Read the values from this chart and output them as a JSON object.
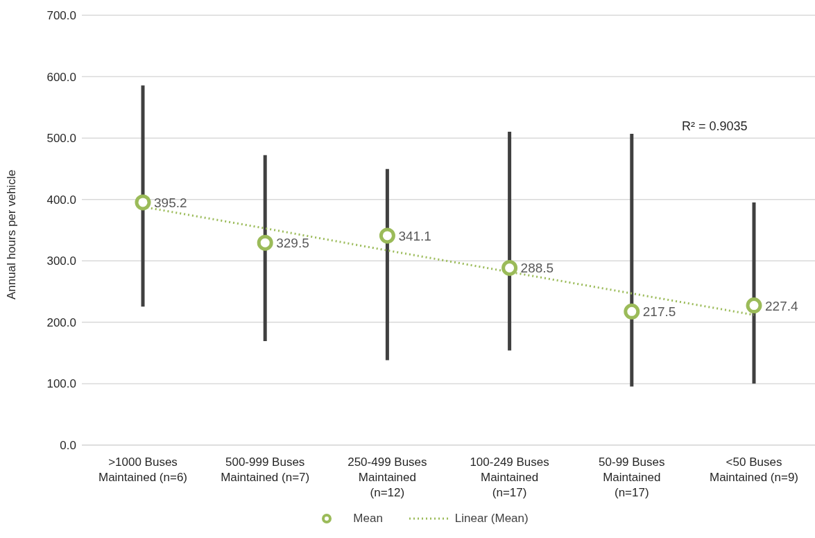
{
  "chart_data": {
    "type": "scatter",
    "ylabel": "Annual hours per vehicle",
    "categories": [
      ">1000 Buses Maintained (n=6)",
      "500-999 Buses Maintained (n=7)",
      "250-499 Buses Maintained (n=12)",
      "100-249 Buses Maintained (n=17)",
      "50-99 Buses Maintained (n=17)",
      "<50 Buses Maintained (n=9)"
    ],
    "series": [
      {
        "name": "Mean",
        "color": "#9bbb59",
        "values": [
          395.2,
          329.5,
          341.1,
          288.5,
          217.5,
          227.4
        ],
        "value_labels": [
          "395.2",
          "329.5",
          "341.1",
          "288.5",
          "217.5",
          "227.4"
        ],
        "errors": [
          [
            225.6,
            585.6
          ],
          [
            169.3,
            472.1
          ],
          [
            138.3,
            449.7
          ],
          [
            154.0,
            510.3
          ],
          [
            95.4,
            507.0
          ],
          [
            100.1,
            395.3
          ]
        ],
        "marker": "circle"
      },
      {
        "name": "Linear (Mean)",
        "type": "line",
        "color": "#9bbb59",
        "x": [
          ">1000 Buses Maintained (n=6)",
          "500-999 Buses Maintained (n=7)",
          "250-499 Buses Maintained (n=12)",
          "100-249 Buses Maintained (n=17)",
          "50-99 Buses Maintained (n=17)",
          "<50 Buses Maintained (n=9)"
        ],
        "values": [
          388,
          353,
          317,
          282,
          247,
          212
        ],
        "line_style": "dotted",
        "marker": "none"
      }
    ],
    "annotations": [
      "R² = 0.9035"
    ],
    "ylim": [
      0,
      700
    ],
    "yticks": [
      {
        "value": 0,
        "label": "0.0"
      },
      {
        "value": 100,
        "label": "100.0"
      },
      {
        "value": 200,
        "label": "200.0"
      },
      {
        "value": 300,
        "label": "300.0"
      },
      {
        "value": 400,
        "label": "400.0"
      },
      {
        "value": 500,
        "label": "500.0"
      },
      {
        "value": 600,
        "label": "600.0"
      },
      {
        "value": 700,
        "label": "700.0"
      }
    ],
    "grid": "y",
    "legend": "bottom"
  }
}
